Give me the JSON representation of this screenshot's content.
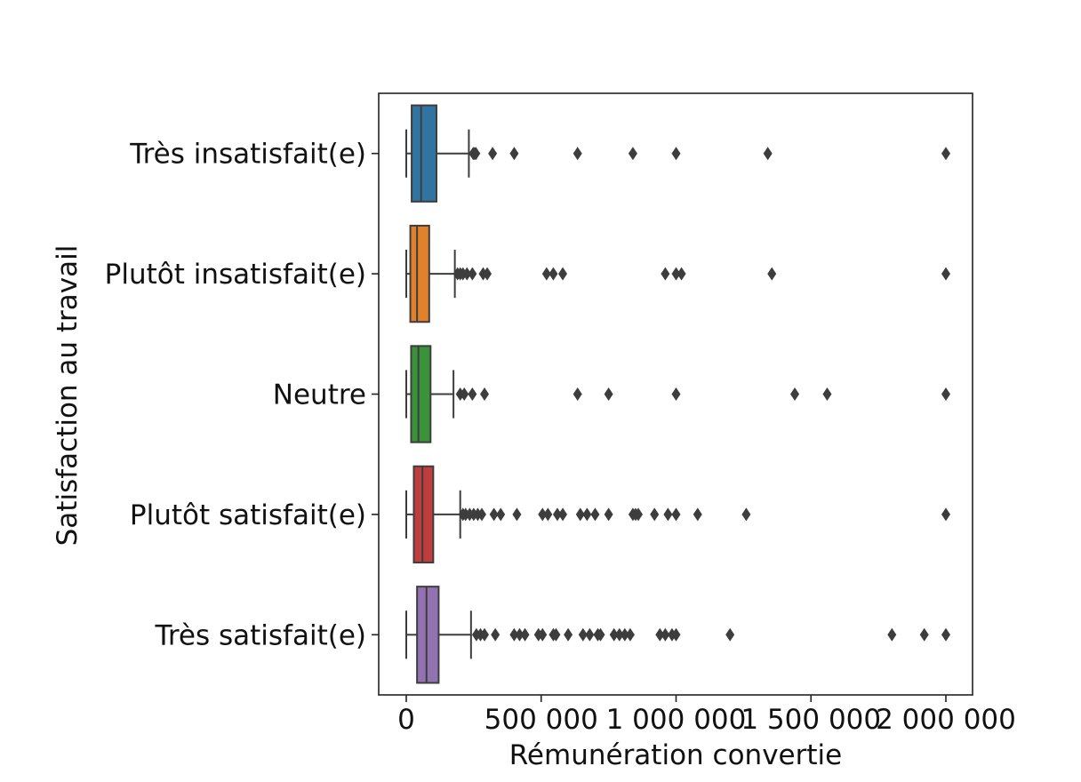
{
  "chart_data": {
    "type": "boxplot",
    "orientation": "horizontal",
    "xlabel": "Rémunération convertie",
    "ylabel": "Satisfaction au travail",
    "xlim": [
      -100000,
      2100000
    ],
    "x_ticks": [
      0,
      500000,
      1000000,
      1500000,
      2000000
    ],
    "x_tick_labels": [
      "0",
      "500 000",
      "1 000 000",
      "1 500 000",
      "2 000 000"
    ],
    "grid": false,
    "series": [
      {
        "category": "Très insatisfait(e)",
        "color": "#3274a1",
        "whisker_low": 0,
        "q1": 20000,
        "median": 55000,
        "q3": 112000,
        "whisker_high": 232000,
        "outliers": [
          248000,
          253000,
          258000,
          320000,
          400000,
          635000,
          840000,
          1000000,
          1340000,
          2000000
        ]
      },
      {
        "category": "Plutôt insatisfait(e)",
        "color": "#e1812c",
        "whisker_low": 0,
        "q1": 15000,
        "median": 40000,
        "q3": 85000,
        "whisker_high": 180000,
        "outliers": [
          190000,
          200000,
          210000,
          225000,
          245000,
          285000,
          300000,
          520000,
          545000,
          580000,
          960000,
          1000000,
          1020000,
          1355000,
          2000000
        ]
      },
      {
        "category": "Neutre",
        "color": "#3a923a",
        "whisker_low": 0,
        "q1": 18000,
        "median": 45000,
        "q3": 90000,
        "whisker_high": 175000,
        "outliers": [
          200000,
          215000,
          245000,
          290000,
          635000,
          750000,
          1000000,
          1440000,
          1560000,
          2000000
        ]
      },
      {
        "category": "Plutôt satisfait(e)",
        "color": "#c03d3e",
        "whisker_low": 0,
        "q1": 28000,
        "median": 60000,
        "q3": 100000,
        "whisker_high": 200000,
        "outliers": [
          210000,
          220000,
          235000,
          250000,
          265000,
          280000,
          325000,
          350000,
          410000,
          505000,
          525000,
          560000,
          580000,
          645000,
          670000,
          700000,
          750000,
          840000,
          850000,
          860000,
          920000,
          970000,
          1000000,
          1080000,
          1260000,
          2000000
        ]
      },
      {
        "category": "Très satisfait(e)",
        "color": "#9372b2",
        "whisker_low": 0,
        "q1": 40000,
        "median": 75000,
        "q3": 120000,
        "whisker_high": 240000,
        "outliers": [
          260000,
          275000,
          290000,
          330000,
          400000,
          420000,
          440000,
          490000,
          505000,
          545000,
          555000,
          600000,
          655000,
          680000,
          710000,
          720000,
          770000,
          790000,
          810000,
          830000,
          940000,
          960000,
          985000,
          1000000,
          1200000,
          1800000,
          1920000,
          2000000
        ]
      }
    ]
  }
}
